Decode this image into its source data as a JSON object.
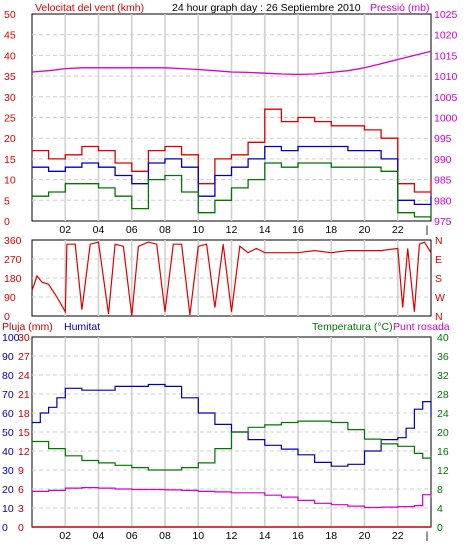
{
  "header": {
    "left_title": "Velocitat del vent (kmh)",
    "center_title": "24 hour graph day : 26 Septiembre 2010",
    "right_title": "Pressió (mb)"
  },
  "colors": {
    "wind_max": "#e00000",
    "wind_avg": "#0000c8",
    "wind_min": "#007800",
    "pressure": "#d200d2",
    "direction": "#e00000",
    "rain": "#c80000",
    "humidity": "#0000b4",
    "temperature": "#007800",
    "dewpoint": "#d200d2",
    "grid": "#d0d0d0",
    "axis": "#000000"
  },
  "chart_data": [
    {
      "type": "line",
      "x_tick_labels": [
        "02",
        "04",
        "06",
        "08",
        "10",
        "12",
        "14",
        "16",
        "18",
        "20",
        "22"
      ],
      "xlim": [
        0,
        24
      ],
      "left_axis": {
        "label": "Velocitat del vent (kmh)",
        "ylim": [
          0,
          50
        ],
        "ticks": [
          0,
          5,
          10,
          15,
          20,
          25,
          30,
          35,
          40,
          45,
          50
        ]
      },
      "right_axis": {
        "label": "Pressió (mb)",
        "ylim": [
          975,
          1025
        ],
        "ticks": [
          975,
          980,
          985,
          990,
          995,
          1000,
          1005,
          1010,
          1015,
          1020,
          1025
        ]
      },
      "series": [
        {
          "name": "Wind gust",
          "axis": "left",
          "x": [
            0,
            1,
            2,
            3,
            4,
            5,
            6,
            7,
            8,
            9,
            10,
            11,
            12,
            13,
            14,
            15,
            16,
            17,
            18,
            19,
            20,
            21,
            22,
            23,
            24
          ],
          "y": [
            17,
            15,
            16,
            18,
            17,
            14,
            12,
            17,
            18,
            16,
            9,
            15,
            16,
            19,
            27,
            24,
            25,
            24,
            23,
            23,
            22,
            20,
            9,
            7,
            10
          ]
        },
        {
          "name": "Wind average",
          "axis": "left",
          "x": [
            0,
            1,
            2,
            3,
            4,
            5,
            6,
            7,
            8,
            9,
            10,
            11,
            12,
            13,
            14,
            15,
            16,
            17,
            18,
            19,
            20,
            21,
            22,
            23,
            24
          ],
          "y": [
            13,
            12,
            13,
            14,
            13,
            11,
            9,
            14,
            15,
            13,
            6,
            11,
            13,
            15,
            18,
            17,
            18,
            18,
            18,
            17,
            17,
            15,
            5,
            4,
            6
          ]
        },
        {
          "name": "Wind minimum",
          "axis": "left",
          "x": [
            0,
            1,
            2,
            3,
            4,
            5,
            6,
            7,
            8,
            9,
            10,
            11,
            12,
            13,
            14,
            15,
            16,
            17,
            18,
            19,
            20,
            21,
            22,
            23,
            24
          ],
          "y": [
            6,
            7,
            9,
            9,
            8,
            6,
            3,
            10,
            11,
            7,
            2,
            5,
            8,
            10,
            14,
            13,
            14,
            14,
            13,
            13,
            13,
            12,
            2,
            1,
            3
          ]
        },
        {
          "name": "Pressió",
          "axis": "right",
          "x": [
            0,
            1,
            2,
            3,
            4,
            5,
            6,
            7,
            8,
            9,
            10,
            11,
            12,
            13,
            14,
            15,
            16,
            17,
            18,
            19,
            20,
            21,
            22,
            23,
            24
          ],
          "y": [
            1011,
            1011.3,
            1011.8,
            1012,
            1012,
            1012,
            1012,
            1012,
            1012,
            1011.8,
            1011.6,
            1011.3,
            1011,
            1010.9,
            1010.7,
            1010.5,
            1010.4,
            1010.5,
            1010.9,
            1011.3,
            1012,
            1013,
            1014,
            1015,
            1016
          ]
        }
      ]
    },
    {
      "type": "line",
      "x_tick_labels": [
        "02",
        "04",
        "06",
        "08",
        "10",
        "12",
        "14",
        "16",
        "18",
        "20",
        "22"
      ],
      "xlim": [
        0,
        24
      ],
      "left_axis": {
        "ylim": [
          0,
          360
        ],
        "ticks": [
          0,
          90,
          180,
          270,
          360
        ]
      },
      "right_axis": {
        "tick_labels": [
          "N",
          "W",
          "S",
          "E",
          "N"
        ]
      },
      "series": [
        {
          "name": "Wind direction",
          "x": [
            0,
            0.3,
            0.6,
            1,
            1.5,
            2,
            2.1,
            2.6,
            3,
            3.5,
            4,
            4.6,
            5,
            5.5,
            6,
            6.4,
            7,
            7.5,
            8,
            8.5,
            9,
            9.5,
            10,
            10.5,
            11,
            11.5,
            12,
            12.5,
            13,
            13.5,
            14,
            15,
            16,
            17,
            18,
            19,
            20,
            21,
            22,
            22.3,
            22.6,
            23,
            23.3,
            23.6,
            24
          ],
          "y": [
            120,
            190,
            160,
            150,
            90,
            20,
            340,
            340,
            30,
            340,
            350,
            10,
            340,
            330,
            0,
            330,
            350,
            340,
            20,
            340,
            340,
            5,
            330,
            340,
            40,
            340,
            20,
            330,
            300,
            320,
            300,
            300,
            300,
            310,
            300,
            310,
            310,
            310,
            320,
            40,
            320,
            20,
            340,
            350,
            300
          ]
        }
      ]
    },
    {
      "type": "line",
      "x_tick_labels": [
        "02",
        "04",
        "06",
        "08",
        "10",
        "12",
        "14",
        "16",
        "18",
        "20",
        "22"
      ],
      "xlim": [
        0,
        24
      ],
      "left_axis": {
        "label": "Pluja (mm)",
        "ylim": [
          0,
          100
        ],
        "ticks": [
          0,
          10,
          20,
          30,
          40,
          50,
          60,
          70,
          80,
          90,
          100
        ]
      },
      "left_inner_axis": {
        "label": "Humitat",
        "tick_labels": [
          "0",
          "3",
          "6",
          "9",
          "12",
          "15",
          "18",
          "21",
          "24",
          "27",
          "30"
        ]
      },
      "right_axis": {
        "label": "Temperatura (°C)",
        "ylim": [
          0,
          40
        ],
        "ticks": [
          0,
          4,
          8,
          12,
          16,
          20,
          24,
          28,
          32,
          36,
          40
        ]
      },
      "right_title_extra": "Punt rosada",
      "series": [
        {
          "name": "Humitat",
          "axis": "left",
          "x": [
            0,
            0.5,
            1,
            1.5,
            2,
            3,
            4,
            5,
            6,
            7,
            8,
            9,
            10,
            11,
            12,
            13,
            14,
            15,
            16,
            17,
            18,
            19,
            20,
            21,
            22,
            22.5,
            23,
            23.5,
            24
          ],
          "y": [
            55,
            60,
            63,
            68,
            73,
            72,
            72,
            74,
            74,
            75,
            74,
            68,
            60,
            54,
            50,
            46,
            43,
            41,
            38,
            34,
            32,
            33,
            40,
            46,
            47,
            52,
            62,
            66,
            58
          ]
        },
        {
          "name": "Temperatura",
          "axis": "right",
          "x": [
            0,
            1,
            2,
            3,
            4,
            5,
            6,
            7,
            8,
            9,
            10,
            11,
            12,
            13,
            14,
            15,
            16,
            17,
            18,
            19,
            20,
            21,
            22,
            23,
            23.5,
            24
          ],
          "y": [
            18,
            16.5,
            15,
            14,
            13.5,
            13,
            12.5,
            12,
            12,
            12.5,
            13.5,
            16.5,
            20,
            21,
            21.5,
            22,
            22.3,
            22.3,
            22,
            20.5,
            18.5,
            17.5,
            17,
            15.5,
            14.5,
            15
          ]
        },
        {
          "name": "Punt rosada",
          "axis": "right",
          "x": [
            0,
            1,
            2,
            3,
            4,
            5,
            6,
            7,
            8,
            9,
            10,
            11,
            12,
            13,
            14,
            15,
            16,
            17,
            18,
            19,
            20,
            21,
            22,
            23,
            23.5,
            24
          ],
          "y": [
            7.5,
            7.7,
            8.2,
            8.3,
            8.2,
            8,
            7.9,
            7.9,
            7.8,
            7.7,
            7.5,
            7.4,
            7.2,
            7.2,
            6.7,
            6.3,
            5.6,
            5,
            4.7,
            4.4,
            4.1,
            4.2,
            4.3,
            4.5,
            6.8,
            6.2
          ]
        },
        {
          "name": "Pluja",
          "axis": "left",
          "x": [
            0,
            24
          ],
          "y": [
            0,
            0
          ]
        }
      ]
    }
  ]
}
